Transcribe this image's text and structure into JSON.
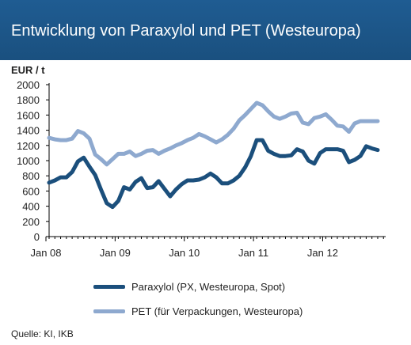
{
  "chart_data": {
    "type": "line",
    "title": "Entwicklung von Paraxylol und PET (Westeuropa)",
    "ylabel": "EUR / t",
    "xlabel": "",
    "ylim": [
      0,
      2000
    ],
    "yticks": [
      0,
      200,
      400,
      600,
      800,
      1000,
      1200,
      1400,
      1600,
      1800,
      2000
    ],
    "xticks": [
      "Jan 08",
      "Jan 09",
      "Jan 10",
      "Jan 11",
      "Jan 12"
    ],
    "grid": false,
    "legend_position": "bottom",
    "source": "Quelle: KI, IKB",
    "series": [
      {
        "name": "Paraxylol (PX, Westeuropa, Spot)",
        "color": "#1b4f7c",
        "values": [
          710,
          740,
          780,
          780,
          850,
          990,
          1040,
          920,
          810,
          620,
          440,
          390,
          470,
          650,
          620,
          720,
          770,
          640,
          650,
          730,
          630,
          530,
          620,
          690,
          740,
          740,
          750,
          780,
          830,
          780,
          700,
          700,
          740,
          800,
          910,
          1060,
          1270,
          1270,
          1130,
          1090,
          1060,
          1060,
          1070,
          1150,
          1120,
          1000,
          960,
          1100,
          1150,
          1150,
          1150,
          1130,
          980,
          1010,
          1060,
          1190,
          1160,
          1140
        ]
      },
      {
        "name": "PET (für Verpackungen, Westeuropa)",
        "color": "#8ea9cf",
        "values": [
          1300,
          1280,
          1270,
          1270,
          1290,
          1390,
          1360,
          1290,
          1080,
          1020,
          950,
          1020,
          1090,
          1090,
          1120,
          1060,
          1090,
          1130,
          1140,
          1090,
          1130,
          1160,
          1200,
          1230,
          1270,
          1300,
          1350,
          1320,
          1280,
          1240,
          1280,
          1340,
          1420,
          1530,
          1600,
          1680,
          1760,
          1730,
          1650,
          1580,
          1550,
          1580,
          1620,
          1630,
          1500,
          1480,
          1560,
          1580,
          1610,
          1540,
          1460,
          1450,
          1380,
          1490,
          1520,
          1520,
          1520,
          1520
        ]
      }
    ]
  },
  "page": {
    "title": "Entwicklung von Paraxylol und PET (Westeuropa)",
    "unit": "EUR / t",
    "source": "Quelle: KI, IKB"
  }
}
